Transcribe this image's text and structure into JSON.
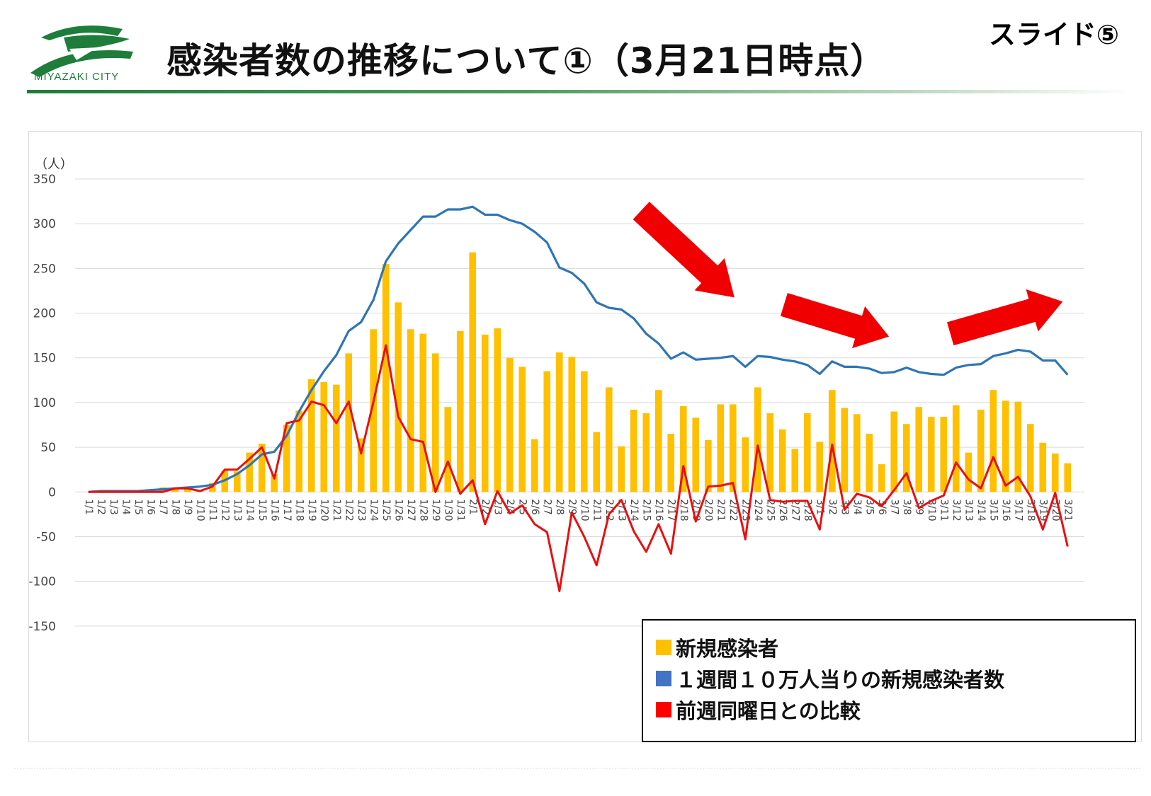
{
  "header": {
    "logo_text": "MIYAZAKI CITY",
    "title": "感染者数の推移について①（3月21日時点）",
    "slide_number": "スライド⑤"
  },
  "colors": {
    "bar": "#FFC000",
    "weekly_line": "#2E75B6",
    "comparison_line": "#E81010",
    "arrow": "#F00000",
    "logo_green": "#1E7D3A",
    "gridline": "#D9D9D9"
  },
  "chart_data": {
    "type": "bar",
    "title": "",
    "ylabel": "（人）",
    "xlabel": "",
    "ylim": [
      -150,
      350
    ],
    "yticks": [
      350,
      300,
      250,
      200,
      150,
      100,
      50,
      0,
      -50,
      -100,
      -150
    ],
    "grid": true,
    "legend_position": "bottom-right",
    "categories": [
      "1/1",
      "1/2",
      "1/3",
      "1/4",
      "1/5",
      "1/6",
      "1/7",
      "1/8",
      "1/9",
      "1/10",
      "1/11",
      "1/12",
      "1/13",
      "1/14",
      "1/15",
      "1/16",
      "1/17",
      "1/18",
      "1/19",
      "1/20",
      "1/21",
      "1/22",
      "1/23",
      "1/24",
      "1/25",
      "1/26",
      "1/27",
      "1/28",
      "1/29",
      "1/30",
      "1/31",
      "2/1",
      "2/2",
      "2/3",
      "2/4",
      "2/5",
      "2/6",
      "2/7",
      "2/8",
      "2/9",
      "2/10",
      "2/11",
      "2/12",
      "2/13",
      "2/14",
      "2/15",
      "2/16",
      "2/17",
      "2/18",
      "2/19",
      "2/20",
      "2/21",
      "2/22",
      "2/23",
      "2/24",
      "2/25",
      "2/26",
      "2/27",
      "2/28",
      "3/1",
      "3/2",
      "3/3",
      "3/4",
      "3/5",
      "3/6",
      "3/7",
      "3/8",
      "3/9",
      "3/10",
      "3/11",
      "3/12",
      "3/13",
      "3/14",
      "3/15",
      "3/16",
      "3/17",
      "3/18",
      "3/19",
      "3/20",
      "3/21"
    ],
    "series": [
      {
        "name": "新規感染者",
        "type": "bar",
        "color": "#FFC000",
        "values": [
          0,
          0,
          0,
          0,
          0,
          1,
          5,
          5,
          5,
          2,
          10,
          24,
          23,
          44,
          54,
          20,
          75,
          91,
          126,
          123,
          120,
          155,
          60,
          182,
          255,
          212,
          182,
          177,
          155,
          95,
          180,
          268,
          176,
          183,
          150,
          140,
          59,
          135,
          156,
          151,
          135,
          67,
          117,
          51,
          92,
          88,
          114,
          65,
          96,
          83,
          58,
          98,
          98,
          61,
          117,
          88,
          70,
          48,
          88,
          56,
          114,
          94,
          87,
          65,
          31,
          90,
          76,
          95,
          84,
          84,
          97,
          44,
          92,
          114,
          102,
          101,
          76,
          55,
          43,
          32
        ]
      },
      {
        "name": "１週間１０万人当りの新規感染者数",
        "type": "line",
        "color": "#2E75B6",
        "values": [
          0,
          1,
          1,
          1,
          1,
          2,
          3,
          4,
          5,
          6,
          8,
          13,
          20,
          30,
          42,
          45,
          63,
          90,
          114,
          135,
          153,
          180,
          190,
          215,
          258,
          278,
          293,
          308,
          308,
          316,
          316,
          319,
          310,
          310,
          304,
          300,
          291,
          279,
          251,
          245,
          233,
          212,
          206,
          204,
          194,
          177,
          166,
          149,
          156,
          148,
          149,
          150,
          152,
          140,
          152,
          151,
          148,
          146,
          142,
          132,
          146,
          140,
          140,
          138,
          133,
          134,
          139,
          134,
          132,
          131,
          139,
          142,
          143,
          152,
          155,
          159,
          157,
          147,
          147,
          131
        ]
      },
      {
        "name": "前週同曜日との比較",
        "type": "line",
        "color": "#E81010",
        "values": [
          0,
          0,
          0,
          0,
          0,
          0,
          0,
          4,
          4,
          1,
          6,
          25,
          25,
          37,
          50,
          15,
          77,
          80,
          101,
          97,
          77,
          101,
          43,
          101,
          164,
          84,
          59,
          56,
          0,
          34,
          -2,
          13,
          -36,
          1,
          -24,
          -15,
          -36,
          -45,
          -111,
          -23,
          -50,
          -82,
          -25,
          -9,
          -44,
          -67,
          -36,
          -69,
          29,
          -33,
          6,
          7,
          10,
          -53,
          52,
          -9,
          -11,
          -10,
          -10,
          -42,
          53,
          -20,
          -2,
          -6,
          -16,
          2,
          21,
          -18,
          -10,
          -4,
          33,
          14,
          4,
          39,
          7,
          17,
          -5,
          -42,
          -1,
          -61
        ]
      }
    ],
    "annotations": [
      {
        "type": "arrow",
        "direction": "down-right",
        "color": "#F00000"
      },
      {
        "type": "arrow",
        "direction": "right-slightly-down",
        "color": "#F00000"
      },
      {
        "type": "arrow",
        "direction": "right-slightly-up",
        "color": "#F00000"
      }
    ]
  }
}
